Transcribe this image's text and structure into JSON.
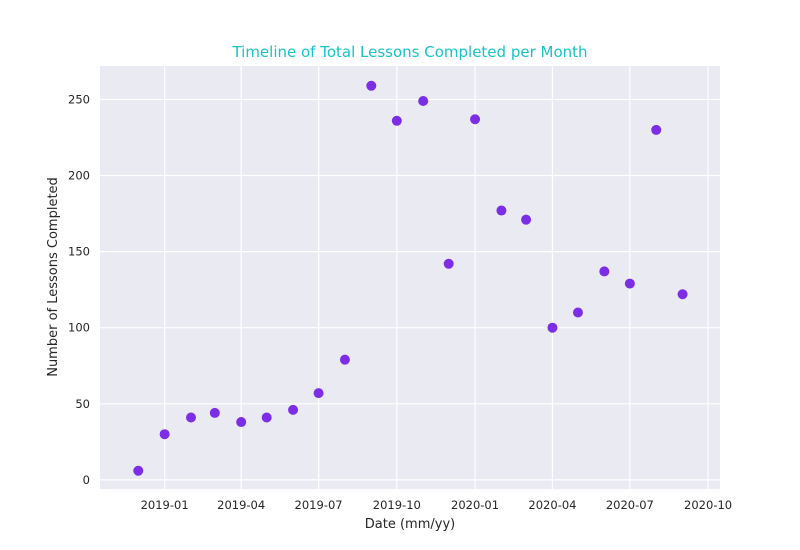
{
  "chart_data": {
    "type": "scatter",
    "title": "Timeline of Total Lessons Completed per Month",
    "xlabel": "Date (mm/yy)",
    "ylabel": "Number of Lessons Completed",
    "x_ticks": [
      "2019-01",
      "2019-04",
      "2019-07",
      "2019-10",
      "2020-01",
      "2020-04",
      "2020-07",
      "2020-10"
    ],
    "x_tick_values": [
      "2019-01-01",
      "2019-04-01",
      "2019-07-01",
      "2019-10-01",
      "2020-01-01",
      "2020-04-01",
      "2020-07-01",
      "2020-10-01"
    ],
    "y_ticks": [
      0,
      50,
      100,
      150,
      200,
      250
    ],
    "xlim": [
      "2018-10-17",
      "2020-10-15"
    ],
    "ylim": [
      -6,
      272
    ],
    "grid": true,
    "colors": {
      "background": "#eaeaf2",
      "grid": "#ffffff",
      "point": "#7b2ee6",
      "title": "#17c3c8"
    },
    "points": [
      {
        "x": "2018-12-01",
        "y": 6
      },
      {
        "x": "2019-01-01",
        "y": 30
      },
      {
        "x": "2019-02-01",
        "y": 41
      },
      {
        "x": "2019-03-01",
        "y": 44
      },
      {
        "x": "2019-04-01",
        "y": 38
      },
      {
        "x": "2019-05-01",
        "y": 41
      },
      {
        "x": "2019-06-01",
        "y": 46
      },
      {
        "x": "2019-07-01",
        "y": 57
      },
      {
        "x": "2019-08-01",
        "y": 79
      },
      {
        "x": "2019-09-01",
        "y": 259
      },
      {
        "x": "2019-10-01",
        "y": 236
      },
      {
        "x": "2019-11-01",
        "y": 249
      },
      {
        "x": "2019-12-01",
        "y": 142
      },
      {
        "x": "2020-01-01",
        "y": 237
      },
      {
        "x": "2020-02-01",
        "y": 177
      },
      {
        "x": "2020-03-01",
        "y": 171
      },
      {
        "x": "2020-04-01",
        "y": 100
      },
      {
        "x": "2020-05-01",
        "y": 110
      },
      {
        "x": "2020-06-01",
        "y": 137
      },
      {
        "x": "2020-07-01",
        "y": 129
      },
      {
        "x": "2020-08-01",
        "y": 230
      },
      {
        "x": "2020-09-01",
        "y": 122
      }
    ]
  }
}
